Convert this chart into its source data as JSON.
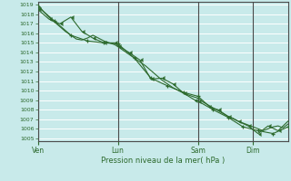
{
  "background_color": "#c8eaea",
  "plot_bg_color": "#c8eaea",
  "grid_color": "#ffffff",
  "line_color": "#2d6a2d",
  "marker_color": "#2d6a2d",
  "xlabel_text": "Pression niveau de la mer( hPa )",
  "ymin": 1005,
  "ymax": 1019,
  "ytick_step": 1,
  "day_labels": [
    "Ven",
    "Lun",
    "Sam",
    "Dim"
  ],
  "day_positions": [
    0.0,
    0.32,
    0.64,
    0.86
  ],
  "vline_color": "#4a4a4a",
  "spine_color": "#4a4a4a",
  "tick_color": "#2d6a2d",
  "label_color": "#2d6a2d",
  "line1_x": [
    0.0,
    0.022,
    0.044,
    0.066,
    0.088,
    0.11,
    0.132,
    0.154,
    0.176,
    0.198,
    0.22,
    0.242,
    0.264,
    0.286,
    0.308,
    0.32,
    0.342,
    0.364,
    0.386,
    0.408,
    0.43,
    0.452,
    0.474,
    0.496,
    0.518,
    0.54,
    0.562,
    0.584,
    0.606,
    0.628,
    0.64,
    0.66,
    0.68,
    0.7,
    0.72,
    0.74,
    0.76,
    0.78,
    0.8,
    0.82,
    0.84,
    0.86,
    0.88,
    0.9,
    0.92,
    0.94,
    0.96,
    0.98,
    1.0
  ],
  "line1_y": [
    1019.0,
    1018.3,
    1017.7,
    1017.2,
    1016.7,
    1016.2,
    1015.8,
    1015.4,
    1015.3,
    1015.5,
    1015.8,
    1015.5,
    1015.2,
    1015.0,
    1014.8,
    1014.6,
    1014.2,
    1013.8,
    1013.4,
    1013.0,
    1012.6,
    1012.1,
    1011.6,
    1011.1,
    1010.7,
    1010.3,
    1010.0,
    1009.7,
    1009.5,
    1009.3,
    1009.2,
    1008.8,
    1008.5,
    1008.2,
    1007.9,
    1007.6,
    1007.3,
    1007.1,
    1006.8,
    1006.6,
    1006.4,
    1006.2,
    1006.0,
    1005.8,
    1006.0,
    1006.2,
    1006.3,
    1006.1,
    1006.5
  ],
  "line2_x": [
    0.0,
    0.044,
    0.088,
    0.132,
    0.176,
    0.22,
    0.264,
    0.308,
    0.32,
    0.364,
    0.408,
    0.452,
    0.496,
    0.54,
    0.584,
    0.628,
    0.64,
    0.68,
    0.72,
    0.76,
    0.8,
    0.84,
    0.88,
    0.92,
    0.96,
    1.0
  ],
  "line2_y": [
    1018.5,
    1017.5,
    1017.0,
    1017.7,
    1016.2,
    1015.5,
    1015.0,
    1015.0,
    1014.7,
    1014.0,
    1013.2,
    1011.2,
    1011.3,
    1010.7,
    1009.7,
    1009.0,
    1008.9,
    1008.3,
    1008.0,
    1007.3,
    1006.8,
    1006.3,
    1005.5,
    1006.3,
    1005.8,
    1006.8
  ],
  "line3_x": [
    0.0,
    0.066,
    0.132,
    0.198,
    0.264,
    0.32,
    0.386,
    0.452,
    0.518,
    0.584,
    0.64,
    0.7,
    0.76,
    0.82,
    0.88,
    0.94,
    1.0
  ],
  "line3_y": [
    1018.8,
    1017.3,
    1015.8,
    1015.2,
    1015.0,
    1014.9,
    1013.4,
    1011.3,
    1010.5,
    1009.8,
    1009.4,
    1008.0,
    1007.2,
    1006.2,
    1005.8,
    1005.5,
    1006.2
  ]
}
